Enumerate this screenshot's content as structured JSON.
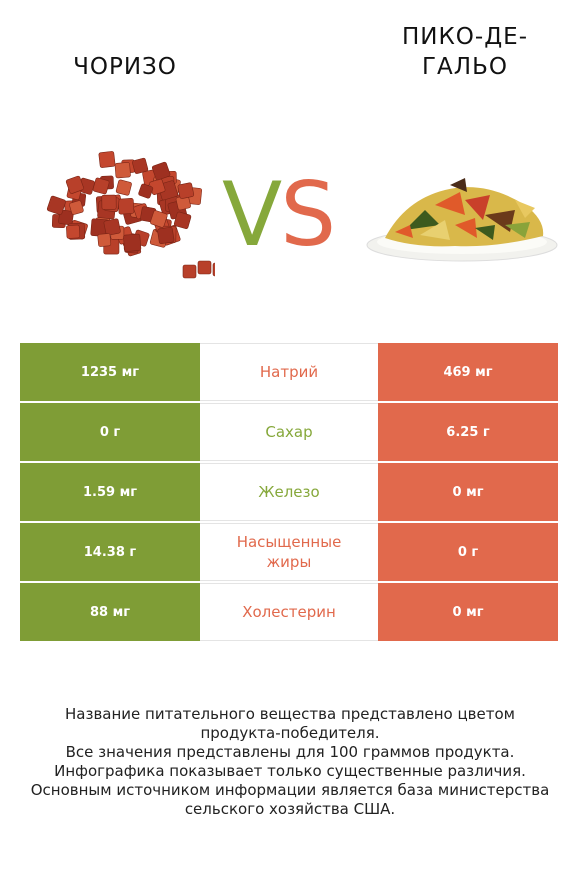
{
  "left_food": {
    "name": "ЧОРИЗО"
  },
  "right_food": {
    "name_line1": "ПИКО-ДЕ-",
    "name_line2": "ГАЛЬО"
  },
  "vs": {
    "v": "V",
    "s": "S"
  },
  "colors": {
    "left": "#7f9d36",
    "right": "#e1694c"
  },
  "rows": [
    {
      "left": "1235 мг",
      "nutrient": "Натрий",
      "right": "469 мг",
      "winner": "right"
    },
    {
      "left": "0 г",
      "nutrient": "Сахар",
      "right": "6.25 г",
      "winner": "left"
    },
    {
      "left": "1.59 мг",
      "nutrient": "Железо",
      "right": "0 мг",
      "winner": "left"
    },
    {
      "left": "14.38 г",
      "nutrient": "Насыщенные жиры",
      "right": "0 г",
      "winner": "right"
    },
    {
      "left": "88 мг",
      "nutrient": "Холестерин",
      "right": "0 мг",
      "winner": "right"
    }
  ],
  "footnote": {
    "line1": "Название питательного вещества представлено цветом",
    "line2": "продукта-победителя.",
    "line3": "Все значения представлены для 100 граммов продукта.",
    "line4": "Инфографика показывает только существенные различия.",
    "line5": "Основным источником информации является база министерства",
    "line6": "сельского хозяйства США."
  }
}
